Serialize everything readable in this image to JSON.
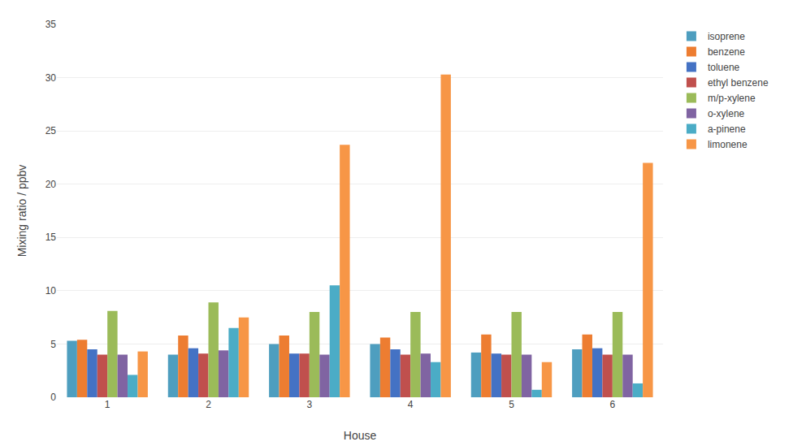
{
  "chart_data": {
    "type": "bar",
    "xlabel": "House",
    "ylabel": "Mixing ratio / ppbv",
    "categories": [
      "1",
      "2",
      "3",
      "4",
      "5",
      "6"
    ],
    "series": [
      {
        "name": "isoprene",
        "color": "#4E9EBF",
        "values": [
          5.3,
          4.0,
          5.0,
          5.0,
          4.2,
          4.5
        ]
      },
      {
        "name": "benzene",
        "color": "#ED7D31",
        "values": [
          5.4,
          5.8,
          5.8,
          5.6,
          5.9,
          5.9
        ]
      },
      {
        "name": "toluene",
        "color": "#4472C4",
        "values": [
          4.5,
          4.6,
          4.1,
          4.5,
          4.1,
          4.6
        ]
      },
      {
        "name": "ethyl benzene",
        "color": "#C0504D",
        "values": [
          4.0,
          4.1,
          4.1,
          4.0,
          4.0,
          4.0
        ]
      },
      {
        "name": "m/p-xylene",
        "color": "#9BBB59",
        "values": [
          8.1,
          8.9,
          8.0,
          8.0,
          8.0,
          8.0
        ]
      },
      {
        "name": "o-xylene",
        "color": "#8064A2",
        "values": [
          4.0,
          4.4,
          4.0,
          4.1,
          4.0,
          4.0
        ]
      },
      {
        "name": "a-pinene",
        "color": "#4BACC6",
        "values": [
          2.1,
          6.5,
          10.5,
          3.3,
          0.7,
          1.3
        ]
      },
      {
        "name": "limonene",
        "color": "#F79646",
        "values": [
          4.3,
          7.5,
          23.7,
          30.3,
          3.3,
          22.0
        ]
      }
    ],
    "ylim": [
      0,
      35
    ],
    "yticks": [
      0,
      5,
      10,
      15,
      20,
      25,
      30,
      35
    ],
    "grid": true,
    "legend": "right"
  }
}
